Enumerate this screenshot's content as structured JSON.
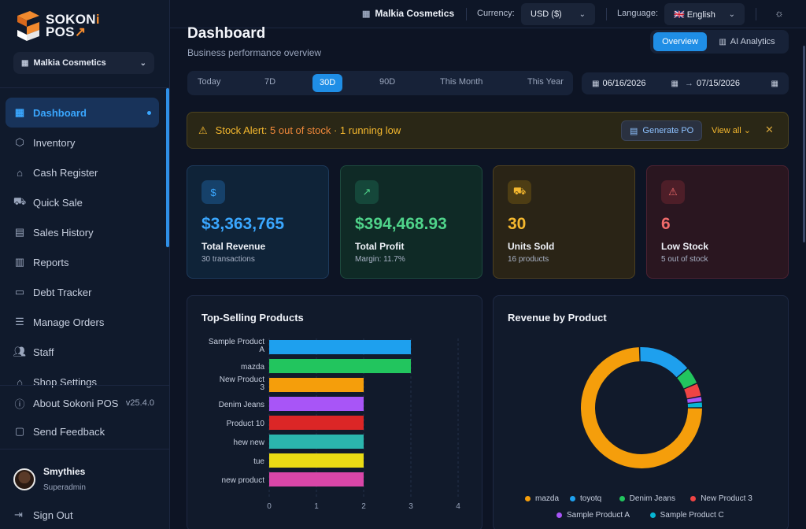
{
  "brand": {
    "line1_a": "SOKON",
    "line1_b": "i",
    "line2_a": "POS"
  },
  "sidebar": {
    "shop": "Malkia Cosmetics",
    "items": [
      {
        "label": "Dashboard",
        "icon": "dashboard-icon"
      },
      {
        "label": "Inventory",
        "icon": "box-icon"
      },
      {
        "label": "Cash Register",
        "icon": "bank-icon"
      },
      {
        "label": "Quick Sale",
        "icon": "cart-icon"
      },
      {
        "label": "Sales History",
        "icon": "clipboard-icon"
      },
      {
        "label": "Reports",
        "icon": "bar-chart-icon"
      },
      {
        "label": "Debt Tracker",
        "icon": "wallet-icon"
      },
      {
        "label": "Manage Orders",
        "icon": "list-icon"
      },
      {
        "label": "Staff",
        "icon": "users-icon"
      },
      {
        "label": "Shop Settings",
        "icon": "store-icon"
      }
    ],
    "about": "About Sokoni POS",
    "version": "v25.4.0",
    "feedback": "Send Feedback",
    "user": {
      "name": "Smythies",
      "role": "Superadmin"
    },
    "signout": "Sign Out"
  },
  "topbar": {
    "shop": "Malkia Cosmetics",
    "currency_label": "Currency:",
    "currency_value": "USD ($)",
    "language_label": "Language:",
    "language_value": "🇬🇧 English"
  },
  "page": {
    "title": "Dashboard",
    "subtitle": "Business performance overview"
  },
  "view_toggle": {
    "overview": "Overview",
    "ai": "AI Analytics"
  },
  "ranges": [
    "Today",
    "7D",
    "30D",
    "90D",
    "This Month",
    "This Year"
  ],
  "active_range": "30D",
  "dates": {
    "from": "06/16/2026",
    "to": "07/15/2026"
  },
  "alert": {
    "prefix": "Stock Alert: ",
    "out": "5 out of stock",
    "sep": " · ",
    "low": "1 running low",
    "generate": "Generate PO",
    "view_all": "View all"
  },
  "kpis": [
    {
      "value": "$3,363,765",
      "label": "Total Revenue",
      "sub": "30 transactions",
      "color": "#3aa7ff"
    },
    {
      "value": "$394,468.93",
      "label": "Total Profit",
      "sub": "Margin: 11.7%",
      "color": "#4fd38a"
    },
    {
      "value": "30",
      "label": "Units Sold",
      "sub": "16 products",
      "color": "#f5b82e"
    },
    {
      "value": "6",
      "label": "Low Stock",
      "sub": "5 out of stock",
      "color": "#f06b6b"
    }
  ],
  "top_products_title": "Top-Selling Products",
  "revenue_title": "Revenue by Product",
  "chart_data": [
    {
      "type": "bar",
      "orientation": "horizontal",
      "title": "Top-Selling Products",
      "categories": [
        "Sample Product A",
        "mazda",
        "New Product 3",
        "Denim Jeans",
        "Product 10",
        "hew new",
        "tue",
        "new product"
      ],
      "values": [
        3,
        3,
        2,
        2,
        2,
        2,
        2,
        2
      ],
      "colors": [
        "#1ea0ee",
        "#22c55e",
        "#f59e0b",
        "#a855f7",
        "#dc2626",
        "#2bb5ad",
        "#eadb14",
        "#d946a8"
      ],
      "xticks": [
        0,
        1,
        2,
        3,
        4
      ],
      "xlim": [
        0,
        4
      ]
    },
    {
      "type": "pie",
      "variant": "donut",
      "title": "Revenue by Product",
      "labels": [
        "mazda",
        "toyotq",
        "Denim Jeans",
        "New Product 3",
        "Sample Product A",
        "Sample Product C"
      ],
      "values": [
        73,
        14,
        4.5,
        3.5,
        1.5,
        1.5
      ],
      "colors": [
        "#f59e0b",
        "#1ea0ee",
        "#22c55e",
        "#ef4444",
        "#a855f7",
        "#06b6d4"
      ],
      "legend": "bottom"
    }
  ]
}
